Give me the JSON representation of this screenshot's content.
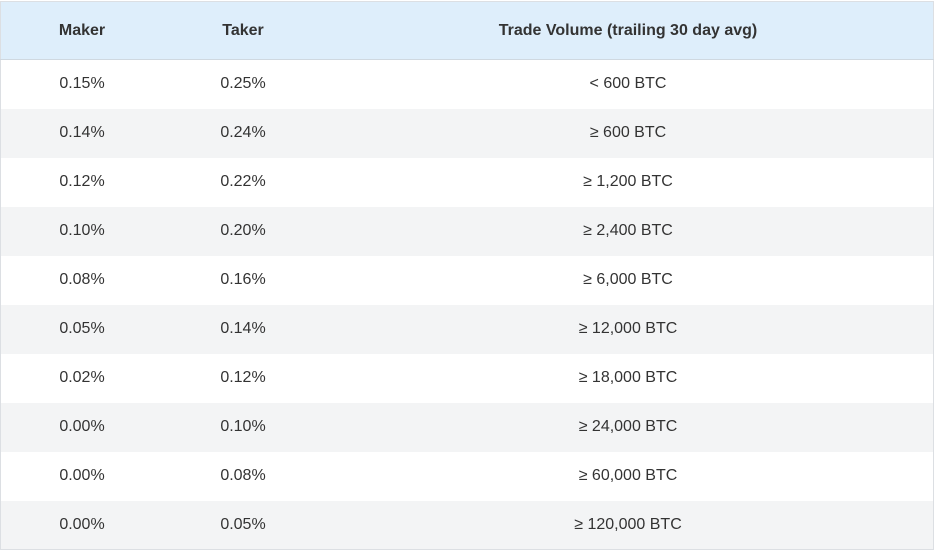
{
  "table": {
    "headers": {
      "maker": "Maker",
      "taker": "Taker",
      "volume": "Trade Volume (trailing 30 day avg)"
    },
    "rows": [
      {
        "maker": "0.15%",
        "taker": "0.25%",
        "volume": "< 600 BTC"
      },
      {
        "maker": "0.14%",
        "taker": "0.24%",
        "volume": "≥ 600 BTC"
      },
      {
        "maker": "0.12%",
        "taker": "0.22%",
        "volume": "≥ 1,200 BTC"
      },
      {
        "maker": "0.10%",
        "taker": "0.20%",
        "volume": "≥ 2,400 BTC"
      },
      {
        "maker": "0.08%",
        "taker": "0.16%",
        "volume": "≥ 6,000 BTC"
      },
      {
        "maker": "0.05%",
        "taker": "0.14%",
        "volume": "≥ 12,000 BTC"
      },
      {
        "maker": "0.02%",
        "taker": "0.12%",
        "volume": "≥ 18,000 BTC"
      },
      {
        "maker": "0.00%",
        "taker": "0.10%",
        "volume": "≥ 24,000 BTC"
      },
      {
        "maker": "0.00%",
        "taker": "0.08%",
        "volume": "≥ 60,000 BTC"
      },
      {
        "maker": "0.00%",
        "taker": "0.05%",
        "volume": "≥ 120,000 BTC"
      }
    ]
  },
  "colors": {
    "header_background": "#deeefb",
    "stripe_background": "#f3f4f5",
    "text": "#333333"
  }
}
